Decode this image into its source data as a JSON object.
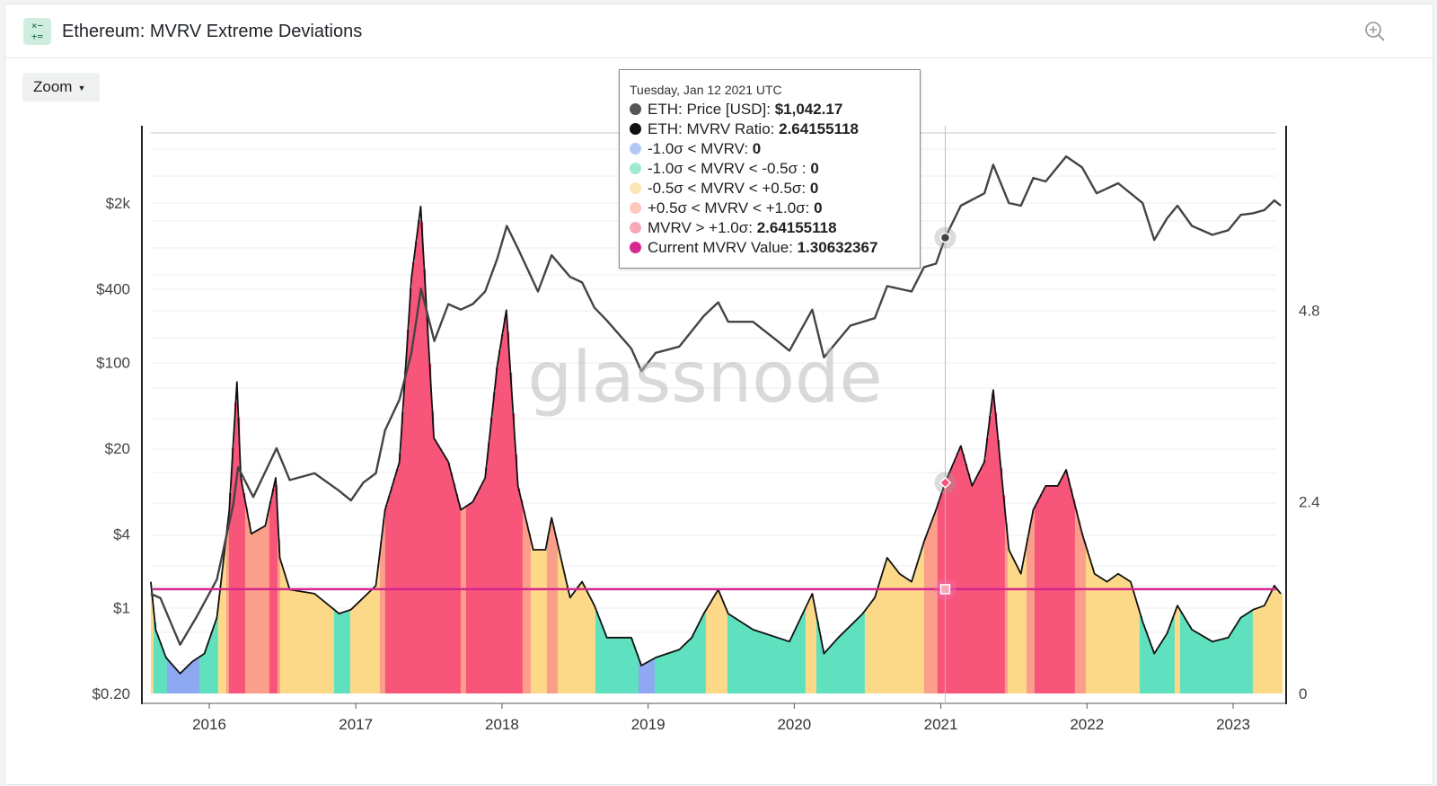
{
  "header": {
    "title": "Ethereum: MVRV Extreme Deviations",
    "icon": "calculator-icon",
    "action_icon": "zoom-in-icon"
  },
  "zoom_button": {
    "label": "Zoom"
  },
  "watermark": "glassnode",
  "tooltip": {
    "date": "Tuesday, Jan 12 2021 UTC",
    "rows": [
      {
        "label": "ETH: Price [USD]:",
        "value": "$1,042.17",
        "color": "#555555"
      },
      {
        "label": "ETH: MVRV Ratio:",
        "value": "2.64155118",
        "color": "#111111"
      },
      {
        "label": "-1.0σ < MVRV:",
        "value": "0",
        "color": "#b5c8f5"
      },
      {
        "label": "-1.0σ < MVRV < -0.5σ :",
        "value": "0",
        "color": "#9fe8d2"
      },
      {
        "label": "-0.5σ < MVRV < +0.5σ:",
        "value": "0",
        "color": "#fbe7b5"
      },
      {
        "label": "+0.5σ < MVRV < +1.0σ:",
        "value": "0",
        "color": "#fbc9bd"
      },
      {
        "label": "MVRV > +1.0σ:",
        "value": "2.64155118",
        "color": "#f7a9b6"
      },
      {
        "label": "Current MVRV Value:",
        "value": "1.30632367",
        "color": "#d6278e"
      }
    ]
  },
  "chart_data": {
    "type": "area",
    "x_ticks": [
      "2016",
      "2017",
      "2018",
      "2019",
      "2020",
      "2021",
      "2022",
      "2023"
    ],
    "y_left_ticks": [
      "$0.20",
      "$1",
      "$4",
      "$20",
      "$100",
      "$400",
      "$2k"
    ],
    "y_left_scale": "log",
    "y_right_ticks": [
      "0",
      "2.4",
      "4.8"
    ],
    "y_right_range": [
      0,
      7.2
    ],
    "current_mvrv": 1.30632367,
    "band_colors": {
      "below_-1sigma": "#8fa8f2",
      "-1sigma_to_-0.5sigma": "#5fe0bf",
      "-0.5sigma_to_+0.5sigma": "#fcd989",
      "+0.5sigma_to_+1sigma": "#fb9f8a",
      "above_+1sigma": "#f7557a"
    },
    "price_color": "#444444",
    "mvrv_line_color": "#111111",
    "current_line_color": "#d6278e",
    "grid": true,
    "mvrv_series": [
      [
        "2015-08-08",
        1.4
      ],
      [
        "2015-08-20",
        0.8
      ],
      [
        "2015-09-15",
        0.45
      ],
      [
        "2015-10-20",
        0.25
      ],
      [
        "2015-11-20",
        0.4
      ],
      [
        "2015-12-20",
        0.5
      ],
      [
        "2016-01-20",
        0.95
      ],
      [
        "2016-02-20",
        2.3
      ],
      [
        "2016-03-10",
        3.9
      ],
      [
        "2016-03-20",
        2.7
      ],
      [
        "2016-04-15",
        2.0
      ],
      [
        "2016-05-20",
        2.1
      ],
      [
        "2016-06-15",
        2.7
      ],
      [
        "2016-06-25",
        1.7
      ],
      [
        "2016-07-20",
        1.3
      ],
      [
        "2016-09-20",
        1.25
      ],
      [
        "2016-11-20",
        1.0
      ],
      [
        "2016-12-20",
        1.05
      ],
      [
        "2017-01-20",
        1.2
      ],
      [
        "2017-02-20",
        1.35
      ],
      [
        "2017-03-15",
        2.3
      ],
      [
        "2017-04-20",
        2.9
      ],
      [
        "2017-05-20",
        5.2
      ],
      [
        "2017-06-12",
        6.1
      ],
      [
        "2017-07-15",
        3.2
      ],
      [
        "2017-08-20",
        2.9
      ],
      [
        "2017-09-20",
        2.3
      ],
      [
        "2017-10-20",
        2.4
      ],
      [
        "2017-11-20",
        2.7
      ],
      [
        "2017-12-20",
        4.1
      ],
      [
        "2018-01-12",
        4.8
      ],
      [
        "2018-02-10",
        2.6
      ],
      [
        "2018-03-20",
        1.8
      ],
      [
        "2018-04-20",
        1.8
      ],
      [
        "2018-05-05",
        2.2
      ],
      [
        "2018-06-20",
        1.2
      ],
      [
        "2018-07-20",
        1.4
      ],
      [
        "2018-08-20",
        1.1
      ],
      [
        "2018-09-20",
        0.7
      ],
      [
        "2018-11-20",
        0.7
      ],
      [
        "2018-12-15",
        0.35
      ],
      [
        "2019-01-20",
        0.45
      ],
      [
        "2019-03-20",
        0.55
      ],
      [
        "2019-04-20",
        0.7
      ],
      [
        "2019-05-20",
        1.0
      ],
      [
        "2019-06-25",
        1.3
      ],
      [
        "2019-07-20",
        1.0
      ],
      [
        "2019-09-20",
        0.8
      ],
      [
        "2019-11-20",
        0.7
      ],
      [
        "2019-12-20",
        0.65
      ],
      [
        "2020-02-15",
        1.25
      ],
      [
        "2020-03-15",
        0.5
      ],
      [
        "2020-04-20",
        0.7
      ],
      [
        "2020-06-20",
        1.0
      ],
      [
        "2020-07-20",
        1.2
      ],
      [
        "2020-08-20",
        1.7
      ],
      [
        "2020-09-20",
        1.5
      ],
      [
        "2020-10-20",
        1.4
      ],
      [
        "2020-11-20",
        1.9
      ],
      [
        "2020-12-20",
        2.3
      ],
      [
        "2021-01-12",
        2.64
      ],
      [
        "2021-02-20",
        3.1
      ],
      [
        "2021-03-20",
        2.6
      ],
      [
        "2021-04-20",
        2.9
      ],
      [
        "2021-05-12",
        3.8
      ],
      [
        "2021-06-20",
        1.8
      ],
      [
        "2021-07-20",
        1.5
      ],
      [
        "2021-08-20",
        2.3
      ],
      [
        "2021-09-20",
        2.6
      ],
      [
        "2021-10-20",
        2.6
      ],
      [
        "2021-11-10",
        2.8
      ],
      [
        "2021-12-20",
        2.0
      ],
      [
        "2022-01-20",
        1.5
      ],
      [
        "2022-02-20",
        1.4
      ],
      [
        "2022-03-20",
        1.5
      ],
      [
        "2022-04-20",
        1.4
      ],
      [
        "2022-05-20",
        0.9
      ],
      [
        "2022-06-18",
        0.5
      ],
      [
        "2022-07-20",
        0.75
      ],
      [
        "2022-08-15",
        1.1
      ],
      [
        "2022-09-20",
        0.8
      ],
      [
        "2022-11-10",
        0.65
      ],
      [
        "2022-12-20",
        0.7
      ],
      [
        "2023-01-20",
        0.95
      ],
      [
        "2023-02-20",
        1.05
      ],
      [
        "2023-03-20",
        1.1
      ],
      [
        "2023-04-14",
        1.35
      ],
      [
        "2023-04-30",
        1.25
      ]
    ],
    "price_series": [
      [
        "2015-08-08",
        1.3
      ],
      [
        "2015-09-01",
        1.2
      ],
      [
        "2015-10-20",
        0.5
      ],
      [
        "2015-12-01",
        0.85
      ],
      [
        "2016-01-20",
        1.7
      ],
      [
        "2016-03-01",
        7.0
      ],
      [
        "2016-03-13",
        14
      ],
      [
        "2016-04-20",
        8.0
      ],
      [
        "2016-06-17",
        20
      ],
      [
        "2016-07-20",
        11
      ],
      [
        "2016-09-20",
        12.5
      ],
      [
        "2016-11-20",
        9
      ],
      [
        "2016-12-20",
        7.5
      ],
      [
        "2017-01-20",
        10.5
      ],
      [
        "2017-02-20",
        12.5
      ],
      [
        "2017-03-15",
        28
      ],
      [
        "2017-04-20",
        50
      ],
      [
        "2017-05-20",
        120
      ],
      [
        "2017-06-13",
        400
      ],
      [
        "2017-07-16",
        150
      ],
      [
        "2017-08-20",
        300
      ],
      [
        "2017-09-20",
        270
      ],
      [
        "2017-10-20",
        300
      ],
      [
        "2017-11-20",
        380
      ],
      [
        "2017-12-20",
        700
      ],
      [
        "2018-01-13",
        1300
      ],
      [
        "2018-02-10",
        850
      ],
      [
        "2018-04-01",
        380
      ],
      [
        "2018-05-05",
        750
      ],
      [
        "2018-06-20",
        500
      ],
      [
        "2018-07-20",
        450
      ],
      [
        "2018-08-20",
        280
      ],
      [
        "2018-09-20",
        220
      ],
      [
        "2018-11-20",
        130
      ],
      [
        "2018-12-15",
        85
      ],
      [
        "2019-01-20",
        120
      ],
      [
        "2019-03-20",
        135
      ],
      [
        "2019-05-20",
        240
      ],
      [
        "2019-06-25",
        310
      ],
      [
        "2019-07-20",
        215
      ],
      [
        "2019-09-20",
        215
      ],
      [
        "2019-11-20",
        150
      ],
      [
        "2019-12-20",
        125
      ],
      [
        "2020-02-15",
        270
      ],
      [
        "2020-03-15",
        110
      ],
      [
        "2020-05-20",
        200
      ],
      [
        "2020-07-20",
        230
      ],
      [
        "2020-08-20",
        420
      ],
      [
        "2020-10-20",
        380
      ],
      [
        "2020-11-20",
        600
      ],
      [
        "2020-12-20",
        640
      ],
      [
        "2021-01-12",
        1042
      ],
      [
        "2021-02-20",
        1900
      ],
      [
        "2021-04-20",
        2400
      ],
      [
        "2021-05-12",
        4100
      ],
      [
        "2021-06-20",
        2000
      ],
      [
        "2021-07-20",
        1900
      ],
      [
        "2021-08-20",
        3200
      ],
      [
        "2021-09-20",
        3000
      ],
      [
        "2021-11-10",
        4800
      ],
      [
        "2021-12-20",
        3900
      ],
      [
        "2022-01-25",
        2400
      ],
      [
        "2022-03-20",
        2900
      ],
      [
        "2022-05-20",
        2000
      ],
      [
        "2022-06-18",
        1000
      ],
      [
        "2022-07-20",
        1500
      ],
      [
        "2022-08-15",
        1900
      ],
      [
        "2022-09-20",
        1300
      ],
      [
        "2022-11-10",
        1100
      ],
      [
        "2022-12-20",
        1200
      ],
      [
        "2023-01-20",
        1600
      ],
      [
        "2023-02-20",
        1650
      ],
      [
        "2023-03-20",
        1750
      ],
      [
        "2023-04-14",
        2100
      ],
      [
        "2023-04-30",
        1900
      ]
    ]
  }
}
